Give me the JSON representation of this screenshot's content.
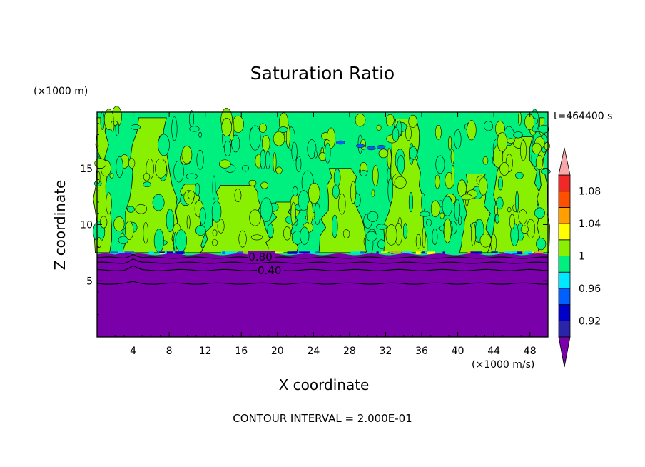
{
  "chart_data": {
    "type": "heatmap",
    "title": "Saturation Ratio",
    "xlabel": "X coordinate",
    "ylabel": "Z coordinate",
    "x_unit": "(×1000 m/s)",
    "y_unit": "(×1000 m)",
    "time_label": "t=464400 s",
    "footer": "CONTOUR INTERVAL = 2.000E-01",
    "xlim": [
      0,
      50
    ],
    "ylim": [
      0,
      20
    ],
    "x_ticks": [
      4,
      8,
      12,
      16,
      20,
      24,
      28,
      32,
      36,
      40,
      44,
      48
    ],
    "y_ticks": [
      5,
      10,
      15
    ],
    "colorbar": {
      "tick_labels": [
        "0.92",
        "0.96",
        "1",
        "1.04",
        "1.08"
      ],
      "levels": [
        0.9,
        0.92,
        0.94,
        0.96,
        0.98,
        1.0,
        1.02,
        1.04,
        1.06,
        1.08,
        1.1
      ],
      "colors": [
        "#7a00aa",
        "#2a24a8",
        "#0000c8",
        "#0060ff",
        "#00e8ff",
        "#00f080",
        "#88f000",
        "#ffff00",
        "#ffa000",
        "#ff5000",
        "#f02828",
        "#f8a8a8"
      ],
      "under_color": "#7a00aa",
      "over_color": "#f8a8a8"
    },
    "contour_labels": [
      {
        "x": 16.8,
        "z": 7.1,
        "text": "0.80"
      },
      {
        "x": 17.8,
        "z": 5.9,
        "text": "0.40"
      }
    ],
    "contour_levels_below": [
      0.4,
      0.6,
      0.8
    ],
    "regions": [
      {
        "name": "upper-layer",
        "z_range": [
          7.4,
          20
        ],
        "value_range": [
          0.98,
          1.02
        ],
        "colors": [
          "#00f080",
          "#88f000"
        ]
      },
      {
        "name": "transition-layer",
        "z_range": [
          7.0,
          7.6
        ],
        "value_range": [
          0.92,
          1.06
        ]
      },
      {
        "name": "lower-layer",
        "z_range": [
          0,
          7.2
        ],
        "value": "< 0.90",
        "color": "#7a00aa"
      }
    ]
  }
}
